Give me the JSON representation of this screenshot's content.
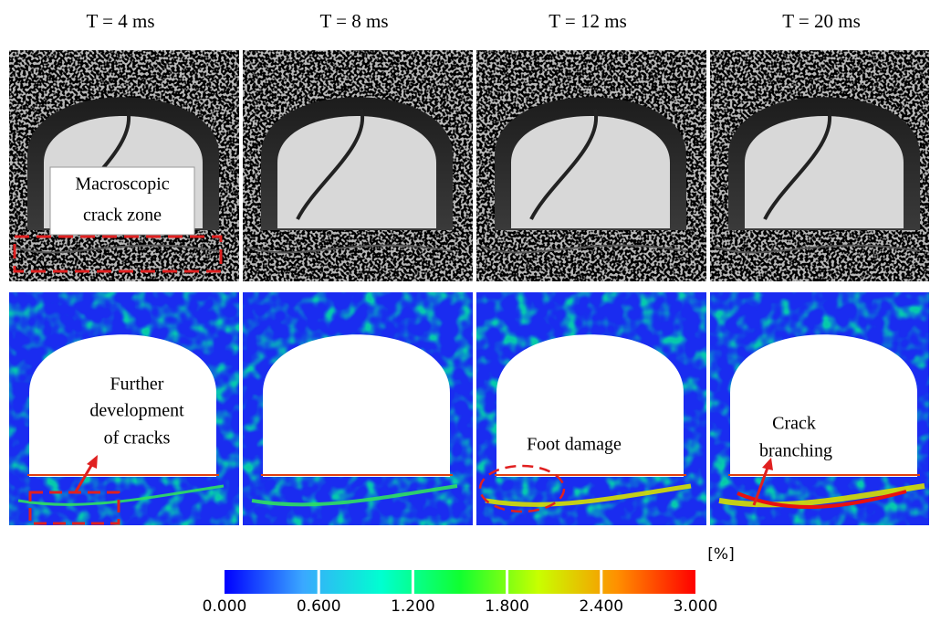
{
  "columns": [
    {
      "title": "T = 4 ms"
    },
    {
      "title": "T = 8 ms"
    },
    {
      "title": "T = 12 ms"
    },
    {
      "title": "T = 20 ms"
    }
  ],
  "annotations": {
    "macroscopic": [
      "Macroscopic",
      "crack zone"
    ],
    "further": [
      "Further",
      "development",
      "of cracks"
    ],
    "foot": "Foot damage",
    "branching": [
      "Crack",
      "branching"
    ]
  },
  "colorbar": {
    "unit": "[%]",
    "range": [
      0,
      3
    ],
    "colors": [
      "#0000ff",
      "#3aa8ff",
      "#00ffd0",
      "#10ff30",
      "#c8ff00",
      "#ff9000",
      "#ff0000"
    ],
    "ticks": [
      {
        "value": 0,
        "label": "0.000"
      },
      {
        "value": 0.6,
        "label": "0.600"
      },
      {
        "value": 1.2,
        "label": "1.200"
      },
      {
        "value": 1.8,
        "label": "1.800"
      },
      {
        "value": 2.4,
        "label": "2.400"
      },
      {
        "value": 3,
        "label": "3.000"
      }
    ]
  }
}
